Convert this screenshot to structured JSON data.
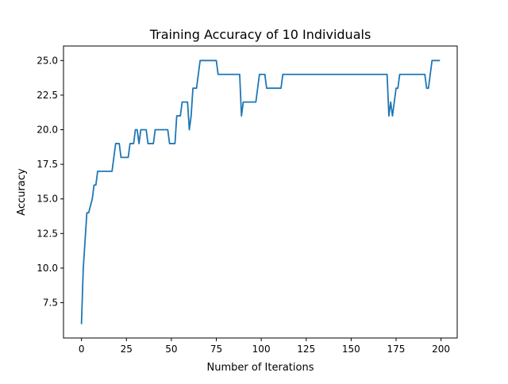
{
  "chart_data": {
    "type": "line",
    "title": "Training Accuracy of 10 Individuals",
    "xlabel": "Number of Iterations",
    "ylabel": "Accuracy",
    "xlim": [
      -10,
      209
    ],
    "ylim": [
      4.95,
      26.05
    ],
    "x_ticks": [
      0,
      25,
      50,
      75,
      100,
      125,
      150,
      175,
      200
    ],
    "x_tick_labels": [
      "0",
      "25",
      "50",
      "75",
      "100",
      "125",
      "150",
      "175",
      "200"
    ],
    "y_ticks": [
      7.5,
      10.0,
      12.5,
      15.0,
      17.5,
      20.0,
      22.5,
      25.0
    ],
    "y_tick_labels": [
      "7.5",
      "10.0",
      "12.5",
      "15.0",
      "17.5",
      "20.0",
      "22.5",
      "25.0"
    ],
    "grid": false,
    "line_color": "#1f77b4",
    "series": [
      {
        "x": [
          0,
          1,
          3,
          4,
          6,
          7,
          8,
          9,
          10,
          17,
          18,
          19,
          20,
          21,
          22,
          26,
          27,
          28,
          29,
          30,
          31,
          32,
          33,
          34,
          35,
          36,
          37,
          38,
          39,
          40,
          41,
          42,
          43,
          44,
          45,
          46,
          47,
          48,
          49,
          50,
          51,
          52,
          53,
          54,
          55,
          56,
          57,
          58,
          59,
          60,
          61,
          62,
          63,
          64,
          65,
          66,
          67,
          68,
          69,
          70,
          71,
          72,
          73,
          74,
          75,
          76,
          77,
          78,
          79,
          80,
          81,
          82,
          83,
          84,
          85,
          86,
          87,
          88,
          89,
          90,
          91,
          92,
          93,
          94,
          95,
          96,
          97,
          98,
          99,
          100,
          101,
          102,
          103,
          104,
          105,
          106,
          107,
          108,
          109,
          110,
          111,
          112,
          113,
          114,
          115,
          120,
          125,
          130,
          135,
          140,
          145,
          150,
          155,
          160,
          165,
          170,
          171,
          172,
          173,
          174,
          175,
          176,
          177,
          178,
          179,
          180,
          185,
          190,
          191,
          192,
          193,
          194,
          195,
          196,
          197,
          198,
          199
        ],
        "y": [
          6,
          10,
          14,
          14,
          15,
          16,
          16,
          17,
          17,
          17,
          18,
          19,
          19,
          19,
          18,
          18,
          19,
          19,
          19,
          20,
          20,
          19,
          20,
          20,
          20,
          20,
          19,
          19,
          19,
          19,
          20,
          20,
          20,
          20,
          20,
          20,
          20,
          20,
          19,
          19,
          19,
          19,
          21,
          21,
          21,
          22,
          22,
          22,
          22,
          20,
          21,
          23,
          23,
          23,
          24,
          25,
          25,
          25,
          25,
          25,
          25,
          25,
          25,
          25,
          25,
          24,
          24,
          24,
          24,
          24,
          24,
          24,
          24,
          24,
          24,
          24,
          24,
          24,
          21,
          22,
          22,
          22,
          22,
          22,
          22,
          22,
          22,
          23,
          24,
          24,
          24,
          24,
          23,
          23,
          23,
          23,
          23,
          23,
          23,
          23,
          23,
          24,
          24,
          24,
          24,
          24,
          24,
          24,
          24,
          24,
          24,
          24,
          24,
          24,
          24,
          24,
          21,
          22,
          21,
          22,
          23,
          23,
          24,
          24,
          24,
          24,
          24,
          24,
          24,
          23,
          23,
          24,
          25,
          25,
          25,
          25,
          25
        ]
      }
    ]
  }
}
